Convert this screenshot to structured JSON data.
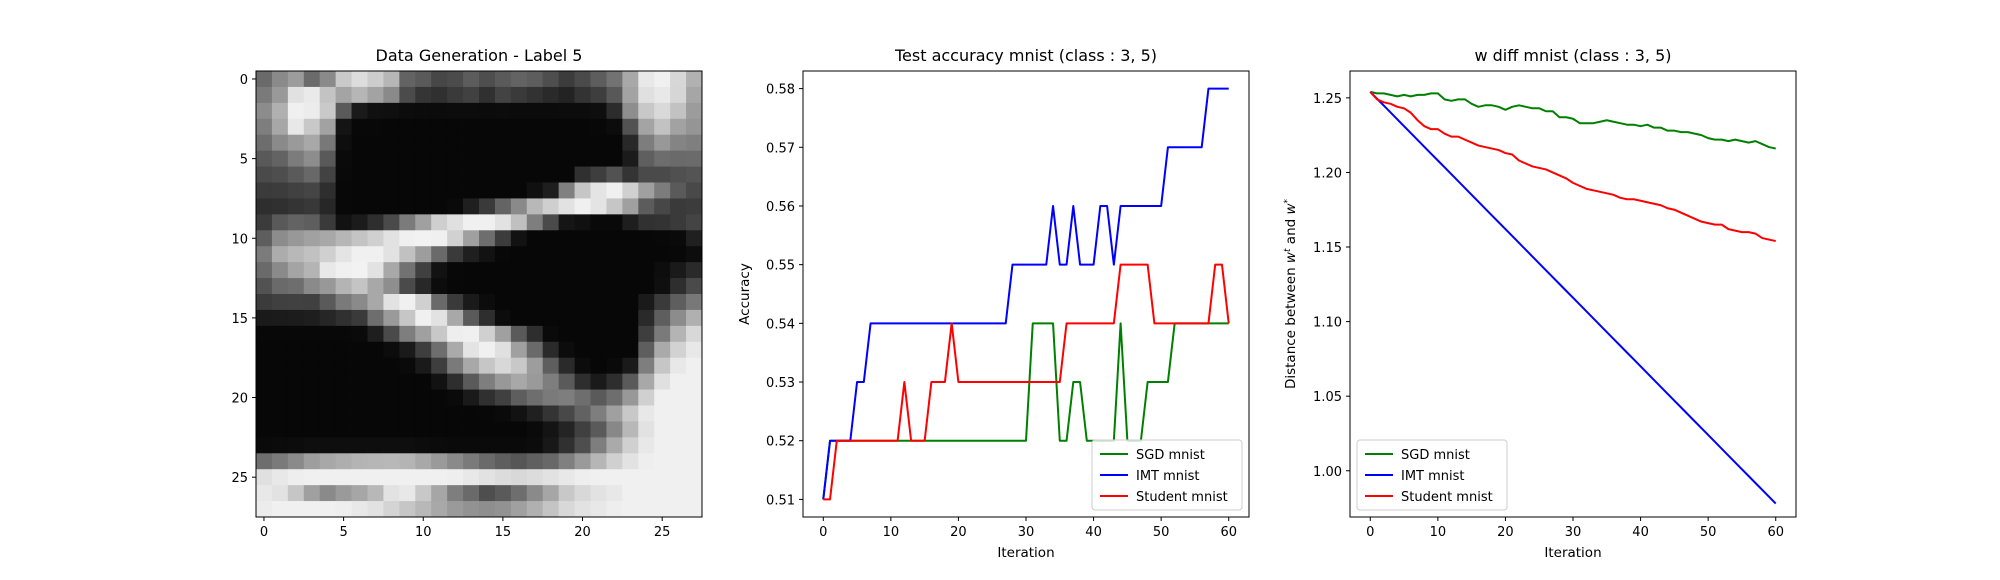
{
  "chart_data": [
    {
      "type": "heatmap",
      "title": "Data Generation - Label 5",
      "xlabel": "",
      "ylabel": "",
      "xticks": [
        0,
        5,
        10,
        15,
        20,
        25
      ],
      "yticks": [
        0,
        5,
        10,
        15,
        20,
        25
      ],
      "xlim": [
        -0.5,
        27.5
      ],
      "ylim": [
        27.5,
        -0.5
      ],
      "colormap": "gray",
      "vmin": 0,
      "vmax": 255,
      "pixels": [
        "6a8a9c6b8ac9ddcdb6635a474b5c4e5a635d4e3c4a5d72a8e8f0d7b1",
        "7a99e1eac3a4b6a38a4b35303a4130433a322a23333e58a3e0e8d6a6",
        "8cb0f0ecc95a1a100f0c0b0b0c0c0b0c0b0b0b0c0c0e2c8ec8d9c29c",
        "7ea7e8c8a214080807070707070707070707070707080c52a4c2a295",
        "6d8a9aa8780e0707070707070707070707070707070707287d98847f",
        "59637c8d590a07070707070707070707070707070707071b5f6d6a6b",
        "4a4e5a6842090707070707070707070707070707303e52344a4a5054",
        "3b3c41452e080707070707070707070707101e80c6e4f0d0a07c5a49",
        "2e30343827080707070707070a1f3a648ab8cfe2f0e4c6a05c473a3c",
        "3b59635e3a121b2e4a7ba0cfe0f0f0e2c07e4a151009091e31333a44",
        "5e8c98a1a8b6c4d0e2f0f2f0d1a06e3c120707070707070707080a20",
        "7bacb8c1d0e4f0f0e2c19d6a3a1f120807070707070707070707080d",
        "6a8aa4b4e8f0f2e2a8724012080707070707070707070707070d1a2a",
        "526a6e8a98b4c4a88e4a280c070707070707070707070707070f2e4a",
        "3b4041405a7a8aa8e2f0d06a3a1a0c0707070707070707071a3a5e78",
        "1a1b1c1e26303a6e9ac6f0e2a85a2e0c07070707070707072a5e8cb0",
        "0808080808080a1e4a7ea0c8eef0d0a05a2e0a07070707073e7ab4d8",
        "07070707070707070c1a3e6eaae4f0e0a06a2a0c070707075eaad2e8",
        "0707070707070707070a1a3e7aa8c6d8c89d5e2a0c070a1a7ec6e8f0",
        "0707070707070707070707122e5a7e98a89a7e5a2e1a2e5aa8e0f0f0",
        "0707070707070707070707070a1a30405e6e7a7e6e5a6e98d0f0f0f0",
        "0707070707070707070707070707080a12203448627ea0c8e8f0f0f0",
        "07070707070707070707070707070707070a1424405a88b8e2f0f0f0",
        "0a0b0c0e0e0e0e0e0e0e0c0b0a0a0a0a0a0c18304e7eaad0e8f0f0f0",
        "6e7a8a9ea8aeb4b6b8b4a89a8a7a6a5e566068809ab6d0e2eef0f0f0",
        "e0e8eef0f0f0f0f0f0f0f0f0eee8e2dcd8dce2e8eef0f0f0f0f0f0f0",
        "e8e2c6a08a9aa6b8e2e8c8a67e6a4e5a6e8aa6c8d8e2e8f0f0f0f0f0",
        "ecf0f0f0f0eee8e2d4c6b8a89a928e92a0b0c4d8e2e8eef0f0f0f0f0"
      ]
    },
    {
      "type": "line",
      "title": "Test accuracy mnist (class : 3, 5)",
      "xlabel": "Iteration",
      "ylabel": "Accuracy",
      "xlim": [
        -3,
        63
      ],
      "ylim": [
        0.507,
        0.583
      ],
      "xticks": [
        0,
        10,
        20,
        30,
        40,
        50,
        60
      ],
      "yticks": [
        0.51,
        0.52,
        0.53,
        0.54,
        0.55,
        0.56,
        0.57,
        0.58
      ],
      "ytick_labels": [
        "0.51",
        "0.52",
        "0.53",
        "0.54",
        "0.55",
        "0.56",
        "0.57",
        "0.58"
      ],
      "legend": "lower-right",
      "x": [
        0,
        1,
        2,
        3,
        4,
        5,
        6,
        7,
        8,
        9,
        10,
        11,
        12,
        13,
        14,
        15,
        16,
        17,
        18,
        19,
        20,
        21,
        22,
        23,
        24,
        25,
        26,
        27,
        28,
        29,
        30,
        31,
        32,
        33,
        34,
        35,
        36,
        37,
        38,
        39,
        40,
        41,
        42,
        43,
        44,
        45,
        46,
        47,
        48,
        49,
        50,
        51,
        52,
        53,
        54,
        55,
        56,
        57,
        58,
        59,
        60
      ],
      "series": [
        {
          "name": "SGD mnist",
          "color": "#008000",
          "values": [
            0.51,
            0.52,
            0.52,
            0.52,
            0.52,
            0.52,
            0.52,
            0.52,
            0.52,
            0.52,
            0.52,
            0.52,
            0.52,
            0.52,
            0.52,
            0.52,
            0.52,
            0.52,
            0.52,
            0.52,
            0.52,
            0.52,
            0.52,
            0.52,
            0.52,
            0.52,
            0.52,
            0.52,
            0.52,
            0.52,
            0.52,
            0.54,
            0.54,
            0.54,
            0.54,
            0.52,
            0.52,
            0.53,
            0.53,
            0.52,
            0.52,
            0.52,
            0.52,
            0.52,
            0.54,
            0.52,
            0.52,
            0.52,
            0.53,
            0.53,
            0.53,
            0.53,
            0.54,
            0.54,
            0.54,
            0.54,
            0.54,
            0.54,
            0.54,
            0.54,
            0.54
          ]
        },
        {
          "name": "IMT mnist",
          "color": "#0000ff",
          "values": [
            0.51,
            0.52,
            0.52,
            0.52,
            0.52,
            0.53,
            0.53,
            0.54,
            0.54,
            0.54,
            0.54,
            0.54,
            0.54,
            0.54,
            0.54,
            0.54,
            0.54,
            0.54,
            0.54,
            0.54,
            0.54,
            0.54,
            0.54,
            0.54,
            0.54,
            0.54,
            0.54,
            0.54,
            0.55,
            0.55,
            0.55,
            0.55,
            0.55,
            0.55,
            0.56,
            0.55,
            0.55,
            0.56,
            0.55,
            0.55,
            0.55,
            0.56,
            0.56,
            0.55,
            0.56,
            0.56,
            0.56,
            0.56,
            0.56,
            0.56,
            0.56,
            0.57,
            0.57,
            0.57,
            0.57,
            0.57,
            0.57,
            0.58,
            0.58,
            0.58,
            0.58
          ]
        },
        {
          "name": "Student mnist",
          "color": "#ff0000",
          "values": [
            0.51,
            0.51,
            0.52,
            0.52,
            0.52,
            0.52,
            0.52,
            0.52,
            0.52,
            0.52,
            0.52,
            0.52,
            0.53,
            0.52,
            0.52,
            0.52,
            0.53,
            0.53,
            0.53,
            0.54,
            0.53,
            0.53,
            0.53,
            0.53,
            0.53,
            0.53,
            0.53,
            0.53,
            0.53,
            0.53,
            0.53,
            0.53,
            0.53,
            0.53,
            0.53,
            0.53,
            0.54,
            0.54,
            0.54,
            0.54,
            0.54,
            0.54,
            0.54,
            0.54,
            0.55,
            0.55,
            0.55,
            0.55,
            0.55,
            0.54,
            0.54,
            0.54,
            0.54,
            0.54,
            0.54,
            0.54,
            0.54,
            0.54,
            0.55,
            0.55,
            0.54
          ]
        }
      ]
    },
    {
      "type": "line",
      "title": "w diff mnist (class : 3, 5)",
      "xlabel": "Iteration",
      "ylabel": "Distance between w^t and w^*",
      "ylabel_parts": [
        "Distance between ",
        "w",
        "t",
        " and ",
        "w",
        "*"
      ],
      "xlim": [
        -3,
        63
      ],
      "ylim": [
        0.969,
        1.268
      ],
      "xticks": [
        0,
        10,
        20,
        30,
        40,
        50,
        60
      ],
      "yticks": [
        1.0,
        1.05,
        1.1,
        1.15,
        1.2,
        1.25
      ],
      "ytick_labels": [
        "1.00",
        "1.05",
        "1.10",
        "1.15",
        "1.20",
        "1.25"
      ],
      "legend": "lower-left",
      "x": [
        0,
        1,
        2,
        3,
        4,
        5,
        6,
        7,
        8,
        9,
        10,
        11,
        12,
        13,
        14,
        15,
        16,
        17,
        18,
        19,
        20,
        21,
        22,
        23,
        24,
        25,
        26,
        27,
        28,
        29,
        30,
        31,
        32,
        33,
        34,
        35,
        36,
        37,
        38,
        39,
        40,
        41,
        42,
        43,
        44,
        45,
        46,
        47,
        48,
        49,
        50,
        51,
        52,
        53,
        54,
        55,
        56,
        57,
        58,
        59,
        60
      ],
      "series": [
        {
          "name": "SGD mnist",
          "color": "#008000",
          "values": [
            1.254,
            1.253,
            1.253,
            1.252,
            1.251,
            1.252,
            1.251,
            1.252,
            1.252,
            1.253,
            1.253,
            1.249,
            1.248,
            1.249,
            1.249,
            1.246,
            1.244,
            1.245,
            1.245,
            1.244,
            1.242,
            1.244,
            1.245,
            1.244,
            1.243,
            1.243,
            1.241,
            1.241,
            1.237,
            1.237,
            1.236,
            1.233,
            1.233,
            1.233,
            1.234,
            1.235,
            1.234,
            1.233,
            1.232,
            1.232,
            1.231,
            1.232,
            1.23,
            1.23,
            1.228,
            1.228,
            1.227,
            1.227,
            1.226,
            1.225,
            1.223,
            1.222,
            1.222,
            1.221,
            1.222,
            1.221,
            1.22,
            1.221,
            1.219,
            1.217,
            1.216
          ]
        },
        {
          "name": "IMT mnist",
          "color": "#0000ff",
          "values": [
            1.254,
            1.2494,
            1.2448,
            1.2402,
            1.2356,
            1.231,
            1.2264,
            1.2218,
            1.2172,
            1.2126,
            1.208,
            1.2034,
            1.1988,
            1.1942,
            1.1896,
            1.185,
            1.1804,
            1.1758,
            1.1712,
            1.1666,
            1.162,
            1.1574,
            1.1528,
            1.1482,
            1.1436,
            1.139,
            1.1344,
            1.1298,
            1.1252,
            1.1206,
            1.116,
            1.1114,
            1.1068,
            1.1022,
            1.0976,
            1.093,
            1.0884,
            1.0838,
            1.0792,
            1.0746,
            1.07,
            1.0654,
            1.0608,
            1.0562,
            1.0516,
            1.047,
            1.0424,
            1.0378,
            1.0332,
            1.0286,
            1.024,
            1.0194,
            1.0148,
            1.0102,
            1.0056,
            1.001,
            0.9964,
            0.9918,
            0.9872,
            0.9826,
            0.978
          ]
        },
        {
          "name": "Student mnist",
          "color": "#ff0000",
          "values": [
            1.254,
            1.249,
            1.247,
            1.246,
            1.244,
            1.243,
            1.24,
            1.235,
            1.231,
            1.229,
            1.229,
            1.226,
            1.224,
            1.224,
            1.222,
            1.22,
            1.218,
            1.217,
            1.216,
            1.215,
            1.213,
            1.212,
            1.208,
            1.206,
            1.204,
            1.203,
            1.202,
            1.2,
            1.198,
            1.196,
            1.193,
            1.191,
            1.189,
            1.188,
            1.187,
            1.186,
            1.185,
            1.183,
            1.182,
            1.182,
            1.181,
            1.18,
            1.179,
            1.178,
            1.176,
            1.175,
            1.173,
            1.171,
            1.169,
            1.167,
            1.166,
            1.165,
            1.165,
            1.162,
            1.161,
            1.16,
            1.16,
            1.159,
            1.156,
            1.155,
            1.154
          ]
        }
      ]
    }
  ]
}
